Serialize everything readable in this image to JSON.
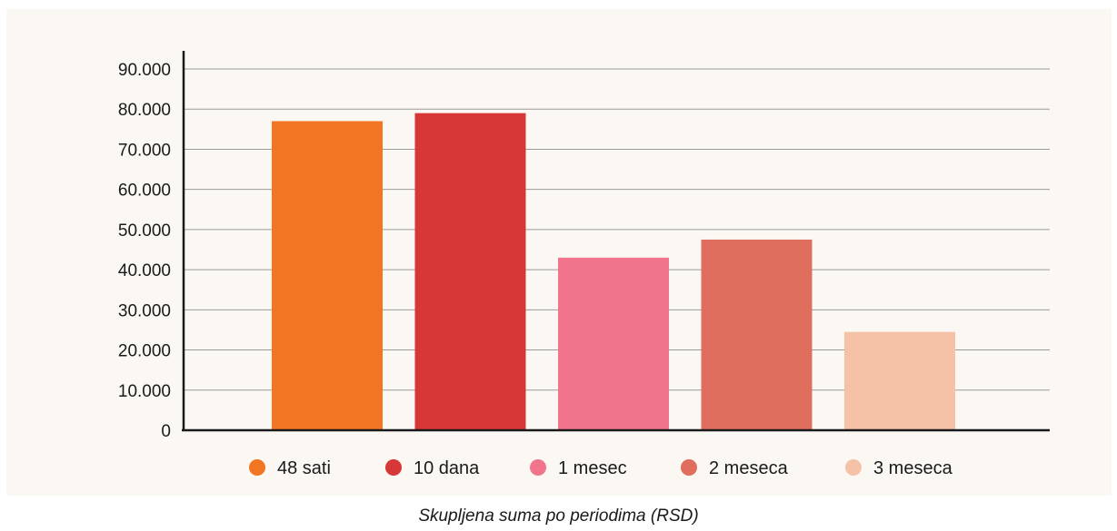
{
  "chart_data": {
    "type": "bar",
    "categories": [
      "48 sati",
      "10 dana",
      "1 mesec",
      "2 meseca",
      "3 meseca"
    ],
    "values": [
      77000,
      79000,
      43000,
      47500,
      24500
    ],
    "colors": [
      "#f27522",
      "#d73737",
      "#f0758c",
      "#e06e5e",
      "#f5c2a8"
    ],
    "ylim": [
      0,
      90000
    ],
    "yticks": [
      0,
      10000,
      20000,
      30000,
      40000,
      50000,
      60000,
      70000,
      80000,
      90000
    ],
    "ytick_labels": [
      "0",
      "10.000",
      "20.000",
      "30.000",
      "40.000",
      "50.000",
      "60.000",
      "70.000",
      "80.000",
      "90.000"
    ],
    "grid": true,
    "legend_position": "bottom",
    "title": "",
    "xlabel": "",
    "ylabel": ""
  },
  "caption": "Skupljena suma po periodima (RSD)"
}
